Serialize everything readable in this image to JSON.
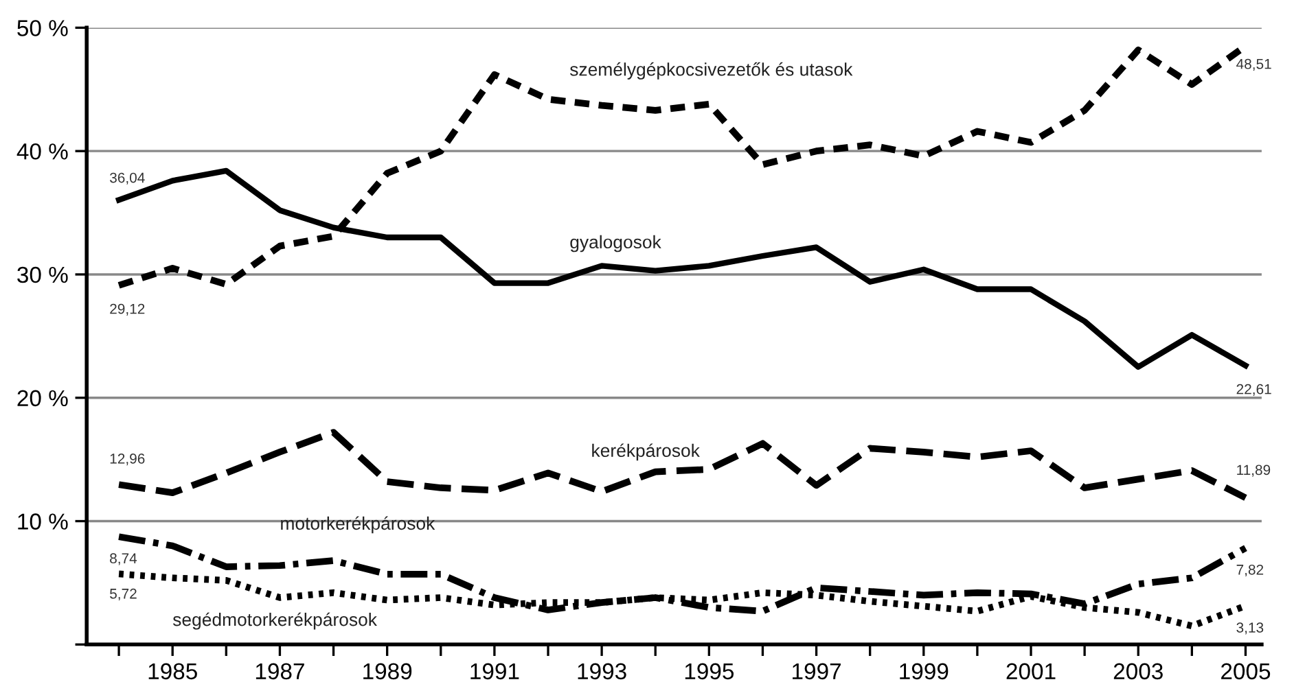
{
  "chart_data": {
    "type": "line",
    "x": [
      1984,
      1985,
      1986,
      1987,
      1988,
      1989,
      1990,
      1991,
      1992,
      1993,
      1994,
      1995,
      1996,
      1997,
      1998,
      1999,
      2000,
      2001,
      2002,
      2003,
      2004,
      2005
    ],
    "series": [
      {
        "name": "személygépkocsivezetők és utasok",
        "color": "#000000",
        "line_style": "dashed",
        "values": [
          29.12,
          30.5,
          29.2,
          32.3,
          33.1,
          38.2,
          40.0,
          46.2,
          44.2,
          43.7,
          43.3,
          43.8,
          38.9,
          40.0,
          40.5,
          39.6,
          41.6,
          40.7,
          43.3,
          48.2,
          45.4,
          48.51
        ],
        "value_labels": [
          "29,12",
          null,
          null,
          null,
          null,
          null,
          null,
          null,
          null,
          null,
          null,
          null,
          null,
          null,
          null,
          null,
          null,
          null,
          null,
          null,
          null,
          "48,51"
        ]
      },
      {
        "name": "gyalogosok",
        "color": "#000000",
        "line_style": "solid",
        "values": [
          36.04,
          37.6,
          38.4,
          35.2,
          33.8,
          33.0,
          33.0,
          29.3,
          29.3,
          30.7,
          30.3,
          30.7,
          31.5,
          32.2,
          29.4,
          30.4,
          28.8,
          28.8,
          26.2,
          22.5,
          25.1,
          22.61
        ],
        "value_labels": [
          "36,04",
          null,
          null,
          null,
          null,
          null,
          null,
          null,
          null,
          null,
          null,
          null,
          null,
          null,
          null,
          null,
          null,
          null,
          null,
          null,
          null,
          "22,61"
        ]
      },
      {
        "name": "kerékpárosok",
        "color": "#000000",
        "line_style": "longdash",
        "values": [
          12.96,
          12.3,
          13.9,
          15.6,
          17.2,
          13.2,
          12.7,
          12.5,
          13.9,
          12.4,
          14.0,
          14.2,
          16.3,
          12.9,
          15.9,
          15.6,
          15.2,
          15.7,
          12.7,
          13.4,
          14.1,
          11.89
        ],
        "value_labels": [
          "12,96",
          null,
          null,
          null,
          null,
          null,
          null,
          null,
          null,
          null,
          null,
          null,
          null,
          null,
          null,
          null,
          null,
          null,
          null,
          null,
          null,
          "11,89"
        ]
      },
      {
        "name": "motorkerékpárosok",
        "color": "#000000",
        "line_style": "dashdot",
        "values": [
          8.74,
          8.0,
          6.3,
          6.4,
          6.8,
          5.7,
          5.7,
          3.8,
          2.8,
          3.4,
          3.8,
          3.0,
          2.7,
          4.6,
          4.3,
          4.0,
          4.2,
          4.1,
          3.3,
          4.9,
          5.4,
          7.82
        ],
        "value_labels": [
          "8,74",
          null,
          null,
          null,
          null,
          null,
          null,
          null,
          null,
          null,
          null,
          null,
          null,
          null,
          null,
          null,
          null,
          null,
          null,
          null,
          null,
          "7,82"
        ]
      },
      {
        "name": "segédmotorkerékpárosok",
        "color": "#000000",
        "line_style": "dotted",
        "values": [
          5.72,
          5.4,
          5.2,
          3.8,
          4.2,
          3.6,
          3.8,
          3.2,
          3.4,
          3.4,
          3.8,
          3.6,
          4.2,
          4.0,
          3.5,
          3.1,
          2.7,
          3.9,
          3.0,
          2.6,
          1.5,
          3.13
        ],
        "value_labels": [
          "5,72",
          null,
          null,
          null,
          null,
          null,
          null,
          null,
          null,
          null,
          null,
          null,
          null,
          null,
          null,
          null,
          null,
          null,
          null,
          null,
          null,
          "3,13"
        ]
      }
    ],
    "xlim": [
      1983.4,
      2005.3
    ],
    "xticks": [
      {
        "value": 1984,
        "label": null
      },
      1985,
      {
        "value": 1986,
        "label": null
      },
      1987,
      {
        "value": 1988,
        "label": null
      },
      1989,
      {
        "value": 1990,
        "label": null
      },
      1991,
      {
        "value": 1992,
        "label": null
      },
      1993,
      {
        "value": 1994,
        "label": null
      },
      1995,
      {
        "value": 1996,
        "label": null
      },
      1997,
      {
        "value": 1998,
        "label": null
      },
      1999,
      {
        "value": 2000,
        "label": null
      },
      2001,
      {
        "value": 2002,
        "label": null
      },
      2003,
      {
        "value": 2004,
        "label": null
      },
      2005
    ],
    "ylim": [
      0,
      50
    ],
    "yticks": [
      {
        "value": 0,
        "label": null
      },
      {
        "value": 10,
        "label": "10 %"
      },
      {
        "value": 20,
        "label": "20 %"
      },
      {
        "value": 30,
        "label": "30 %"
      },
      {
        "value": 40,
        "label": "40 %"
      },
      {
        "value": 50,
        "label": "50 %"
      }
    ],
    "grid": "y",
    "legend": false
  }
}
